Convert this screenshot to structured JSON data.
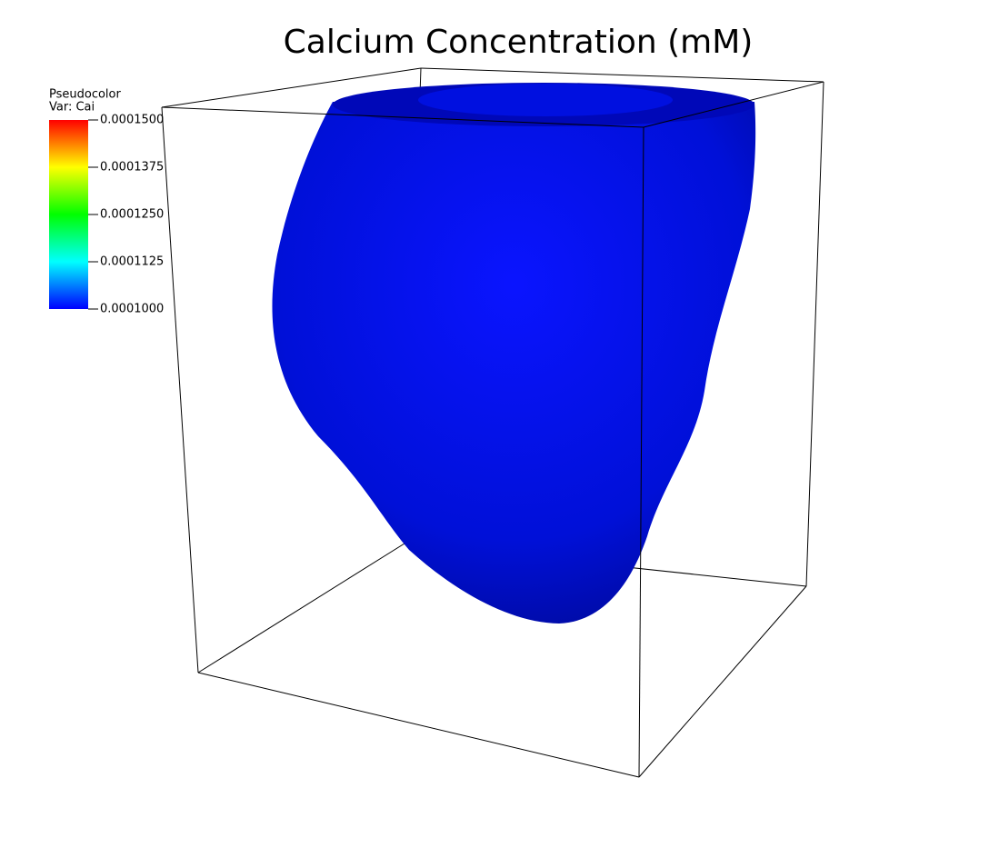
{
  "title": "Calcium Concentration (mM)",
  "legend": {
    "title": [
      "Pseudocolor",
      "Var: Cai"
    ],
    "ticks": [
      "0.0001500",
      "0.0001375",
      "0.0001250",
      "0.0001125",
      "0.0001000"
    ]
  }
}
